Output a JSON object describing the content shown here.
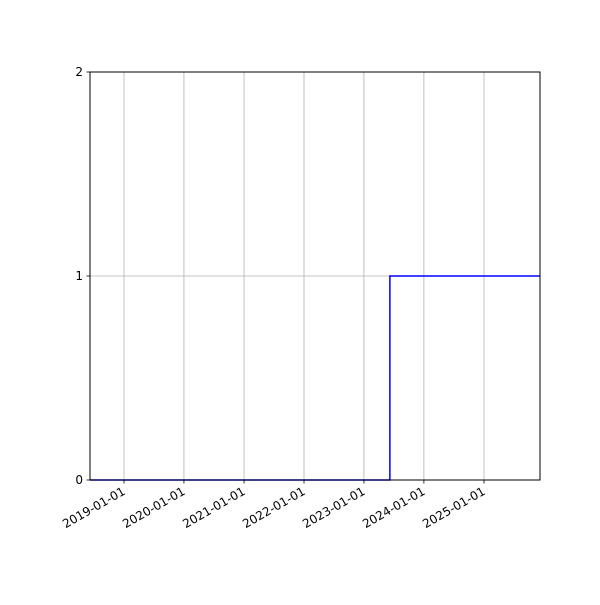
{
  "chart_data": {
    "type": "line",
    "drawstyle": "steps-post",
    "title": "",
    "xlabel": "",
    "ylabel": "",
    "xlim": [
      "2018-06-08",
      "2025-12-08"
    ],
    "ylim": [
      0,
      2
    ],
    "grid": true,
    "x_ticks": [
      "2019-01-01",
      "2020-01-01",
      "2021-01-01",
      "2022-01-01",
      "2023-01-01",
      "2024-01-01",
      "2025-01-01"
    ],
    "y_ticks": [
      "0",
      "1",
      "2"
    ],
    "series": [
      {
        "color": "#0000ff",
        "x": [
          "2018-06-08",
          "2023-06-08",
          "2025-12-08"
        ],
        "y": [
          0,
          1,
          1
        ]
      }
    ]
  }
}
